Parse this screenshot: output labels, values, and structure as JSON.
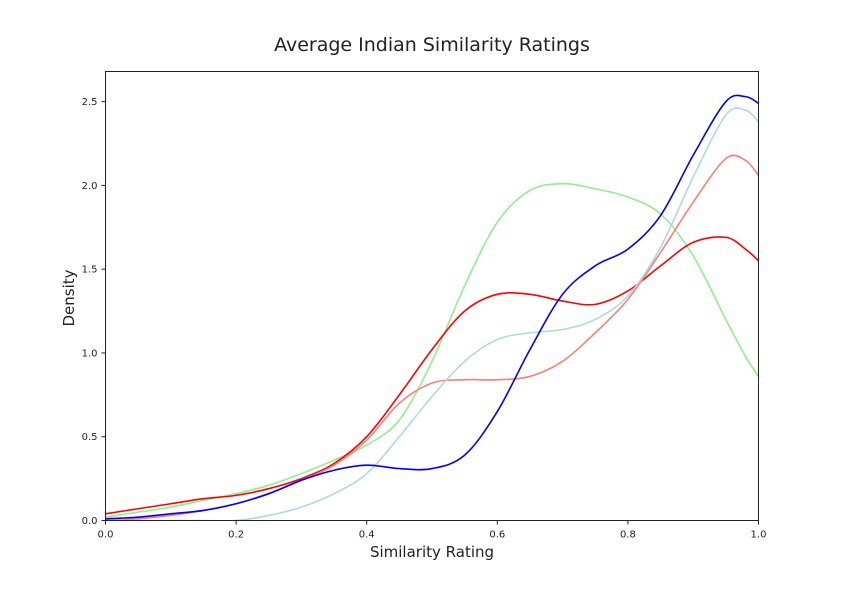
{
  "chart_data": {
    "type": "line",
    "title": "Average Indian Similarity Ratings",
    "xlabel": "Similarity Rating",
    "ylabel": "Density",
    "xlim": [
      0,
      1
    ],
    "ylim": [
      0,
      2.68
    ],
    "xticks": [
      "0.0",
      "0.2",
      "0.4",
      "0.6",
      "0.8",
      "1.0"
    ],
    "yticks": [
      "0.0",
      "0.5",
      "1.0",
      "1.5",
      "2.0",
      "2.5"
    ],
    "grid": false,
    "legend": "none",
    "x": [
      0.0,
      0.05,
      0.1,
      0.15,
      0.2,
      0.25,
      0.3,
      0.35,
      0.4,
      0.45,
      0.5,
      0.55,
      0.6,
      0.65,
      0.7,
      0.75,
      0.8,
      0.85,
      0.9,
      0.95,
      0.98,
      1.0
    ],
    "series": [
      {
        "color": "#90ee90",
        "values": [
          0.02,
          0.05,
          0.08,
          0.12,
          0.16,
          0.21,
          0.28,
          0.36,
          0.45,
          0.6,
          0.95,
          1.4,
          1.78,
          1.97,
          2.01,
          1.98,
          1.93,
          1.83,
          1.58,
          1.2,
          0.98,
          0.86
        ]
      },
      {
        "color": "#ff0000",
        "values": [
          0.04,
          0.07,
          0.1,
          0.13,
          0.15,
          0.19,
          0.25,
          0.34,
          0.5,
          0.75,
          1.02,
          1.25,
          1.35,
          1.35,
          1.31,
          1.29,
          1.37,
          1.52,
          1.66,
          1.69,
          1.62,
          1.55
        ]
      },
      {
        "color": "#fa8072",
        "values": [
          0.0,
          0.01,
          0.03,
          0.06,
          0.1,
          0.16,
          0.24,
          0.33,
          0.48,
          0.7,
          0.82,
          0.84,
          0.84,
          0.86,
          0.95,
          1.12,
          1.32,
          1.6,
          1.9,
          2.16,
          2.15,
          2.06
        ]
      },
      {
        "color": "#add8e6",
        "values": [
          0.0,
          0.0,
          0.0,
          0.0,
          0.0,
          0.03,
          0.08,
          0.16,
          0.28,
          0.5,
          0.74,
          0.95,
          1.08,
          1.12,
          1.14,
          1.2,
          1.34,
          1.63,
          2.05,
          2.42,
          2.45,
          2.38
        ]
      },
      {
        "color": "#0000ff",
        "values": [
          0.01,
          0.02,
          0.04,
          0.06,
          0.1,
          0.16,
          0.24,
          0.3,
          0.33,
          0.31,
          0.31,
          0.39,
          0.65,
          1.02,
          1.35,
          1.52,
          1.62,
          1.82,
          2.18,
          2.5,
          2.53,
          2.49
        ]
      }
    ]
  }
}
